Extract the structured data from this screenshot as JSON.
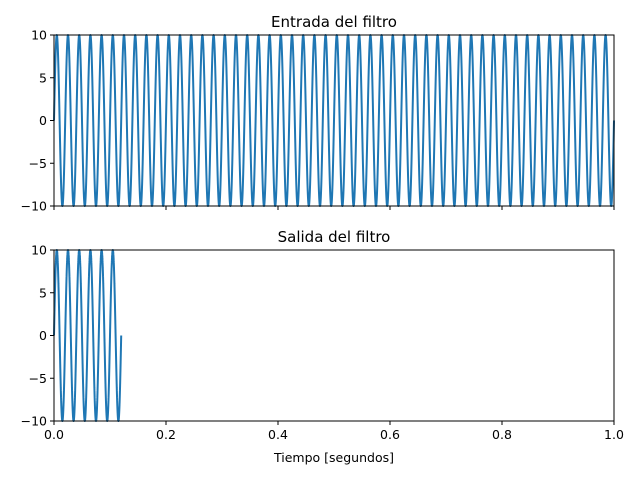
{
  "colors": {
    "series": "#1f77b4",
    "background": "#ffffff",
    "axes": "#000000"
  },
  "chart_data": [
    {
      "type": "line",
      "title": "Entrada del filtro",
      "xlabel": "",
      "ylabel": "",
      "xlim": [
        0,
        1
      ],
      "ylim": [
        -10,
        10
      ],
      "x_ticks": [
        0,
        0.2,
        0.4,
        0.6,
        0.8,
        1.0
      ],
      "x_tick_labels_visible": false,
      "y_ticks": [
        -10,
        -5,
        0,
        5,
        10
      ],
      "y_tick_labels": [
        "−10",
        "−5",
        "0",
        "5",
        "10"
      ],
      "grid": false,
      "legend": "none",
      "series": [
        {
          "function": "sine",
          "amplitude": 10,
          "frequency_hz": 50,
          "x_range": [
            0,
            1
          ]
        }
      ]
    },
    {
      "type": "line",
      "title": "Salida del filtro",
      "xlabel": "Tiempo [segundos]",
      "ylabel": "",
      "xlim": [
        0,
        1
      ],
      "ylim": [
        -10,
        10
      ],
      "x_ticks": [
        0,
        0.2,
        0.4,
        0.6,
        0.8,
        1.0
      ],
      "x_tick_labels": [
        "0.0",
        "0.2",
        "0.4",
        "0.6",
        "0.8",
        "1.0"
      ],
      "y_ticks": [
        -10,
        -5,
        0,
        5,
        10
      ],
      "y_tick_labels": [
        "−10",
        "−5",
        "0",
        "5",
        "10"
      ],
      "grid": false,
      "legend": "none",
      "series": [
        {
          "function": "sine",
          "amplitude": 10,
          "frequency_hz": 50,
          "x_range": [
            0,
            0.12
          ]
        }
      ]
    }
  ]
}
